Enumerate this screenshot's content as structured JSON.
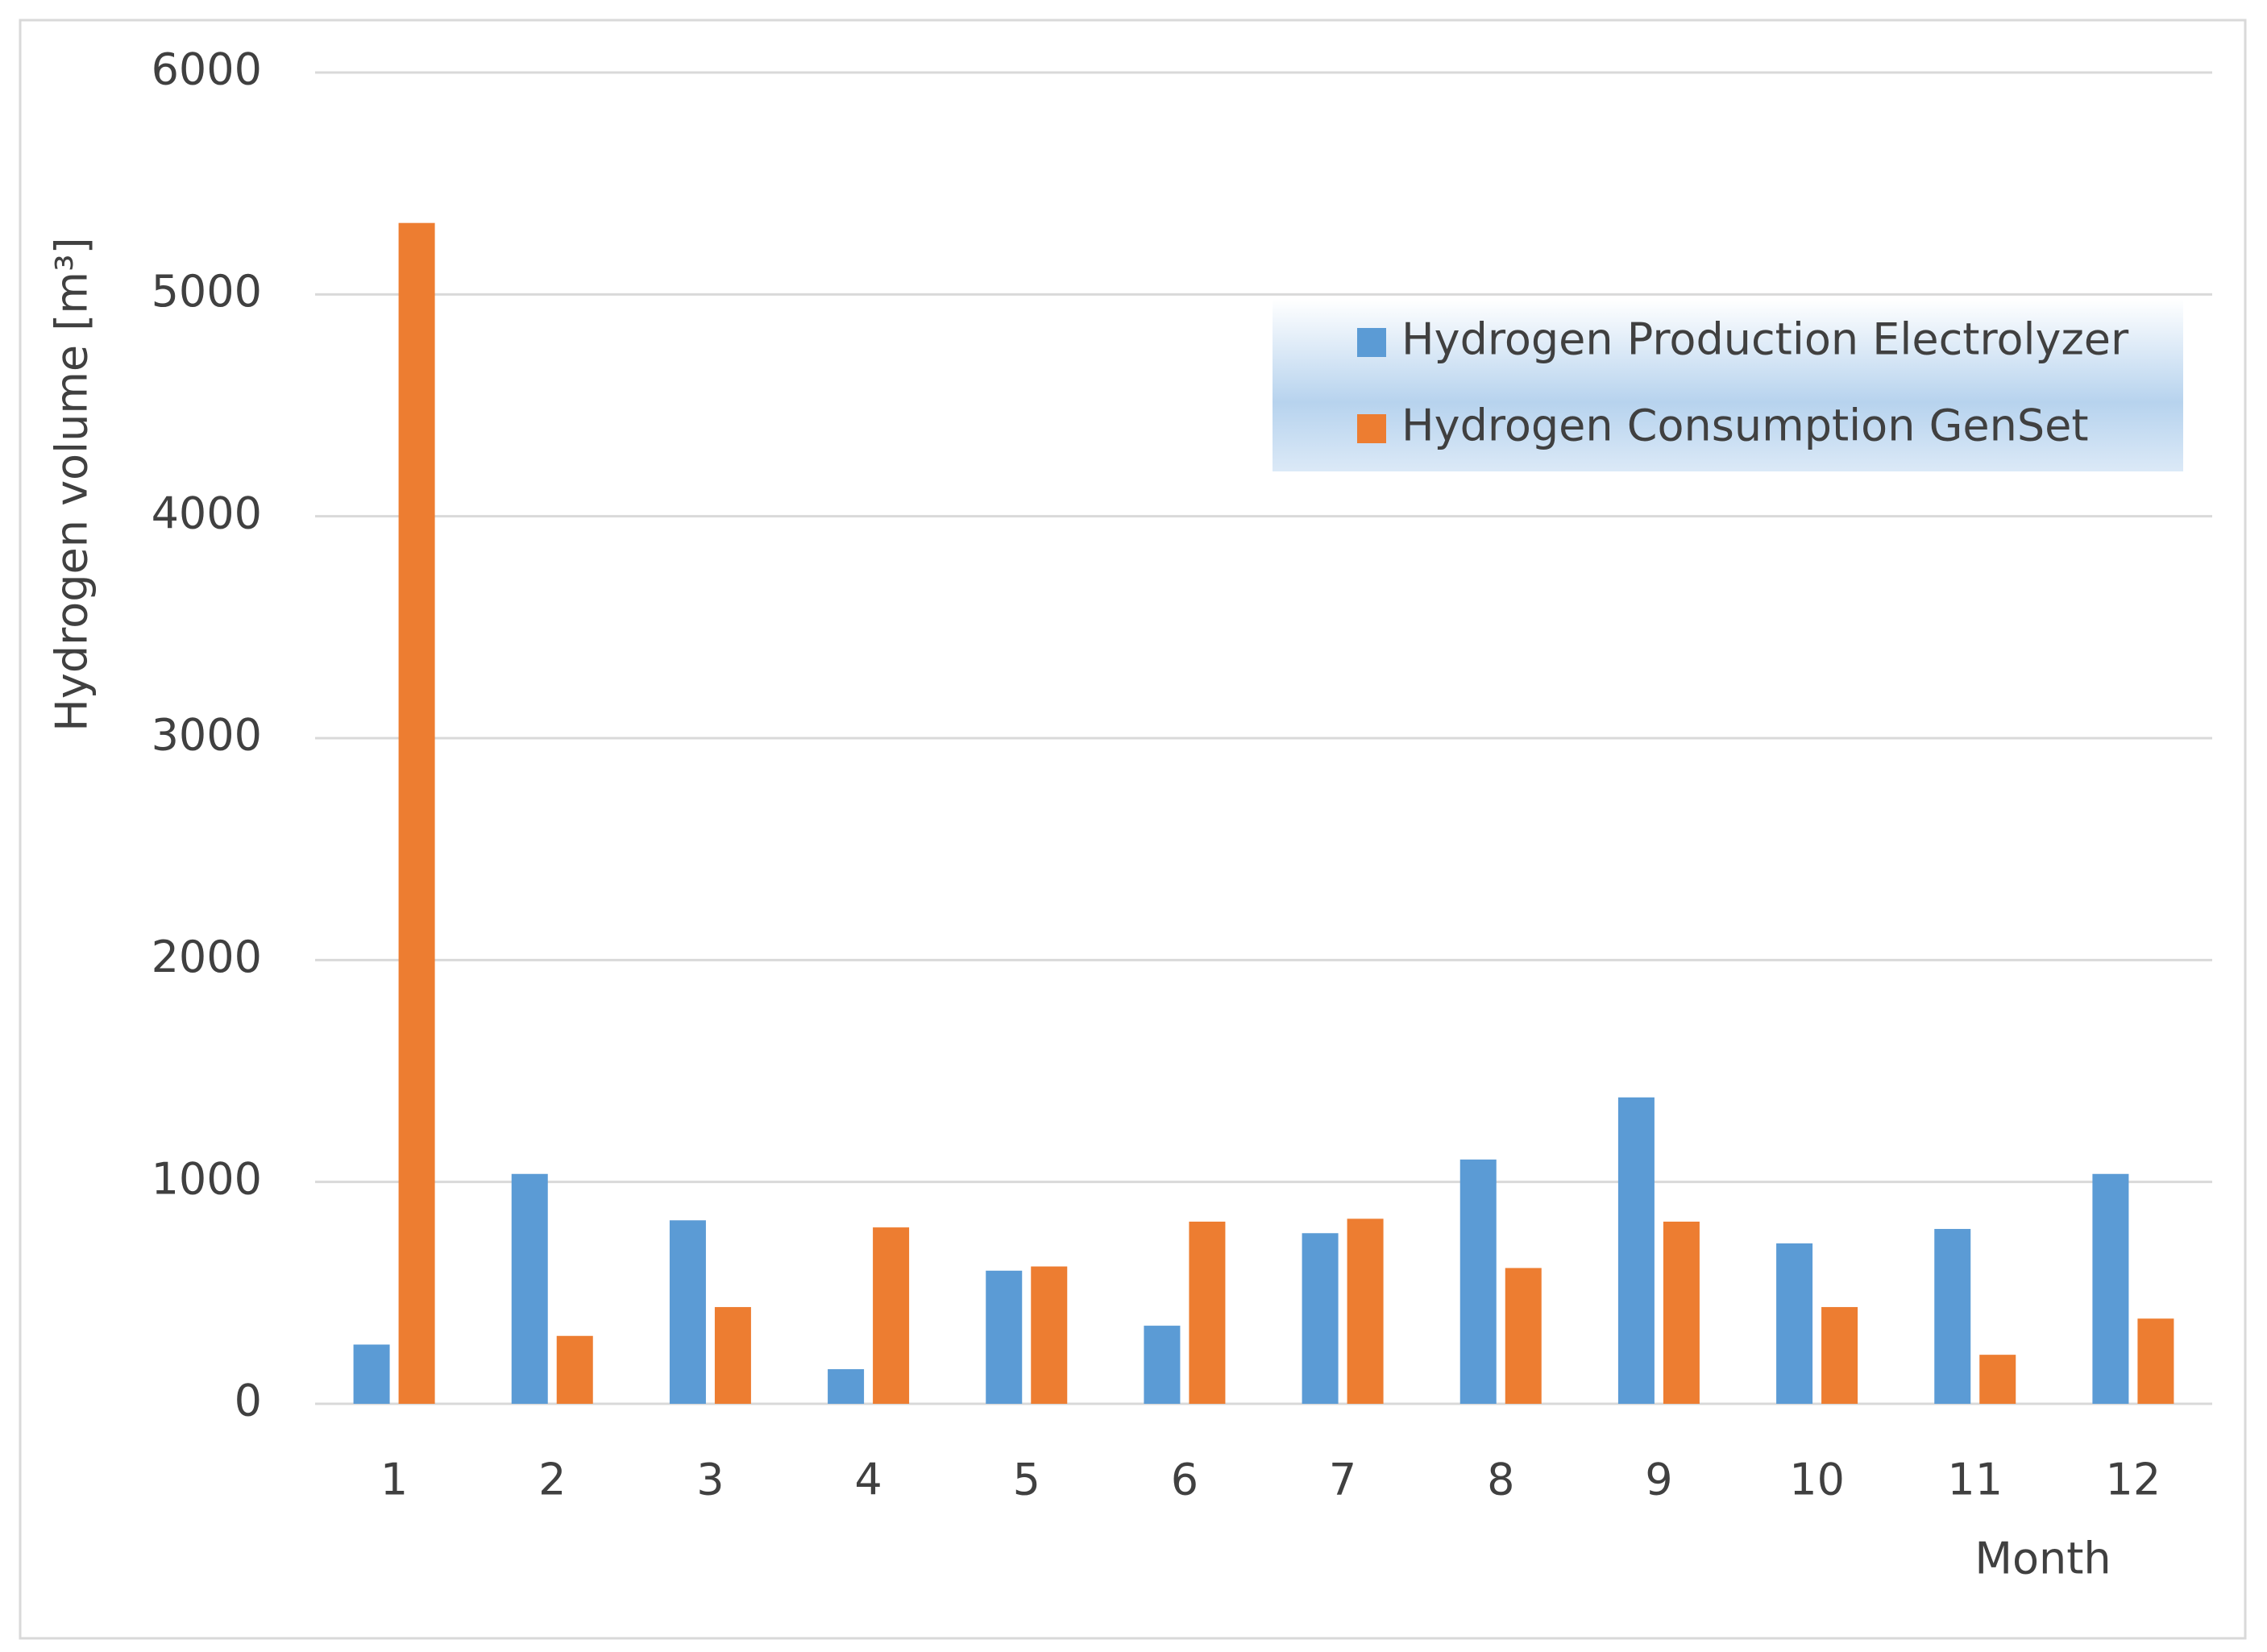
{
  "chart_data": {
    "type": "bar",
    "y_label": "Hydrogen volume [m³]",
    "x_label": "Month",
    "categories": [
      "1",
      "2",
      "3",
      "4",
      "5",
      "6",
      "7",
      "8",
      "9",
      "10",
      "11",
      "12"
    ],
    "series": [
      {
        "name": "Hydrogen Production Electrolyzer",
        "color": "#5b9bd5",
        "values": [
          267,
          1036,
          827,
          156,
          600,
          352,
          769,
          1101,
          1381,
          723,
          788,
          1036
        ]
      },
      {
        "name": "Hydrogen Consumption GenSet",
        "color": "#ed7d31",
        "values": [
          5322,
          306,
          436,
          795,
          619,
          821,
          834,
          612,
          821,
          436,
          221,
          384
        ]
      }
    ],
    "ylim": [
      0,
      6000
    ],
    "yticks": [
      0,
      1000,
      2000,
      3000,
      4000,
      5000,
      6000
    ],
    "grid": true,
    "legend": "upper right"
  }
}
